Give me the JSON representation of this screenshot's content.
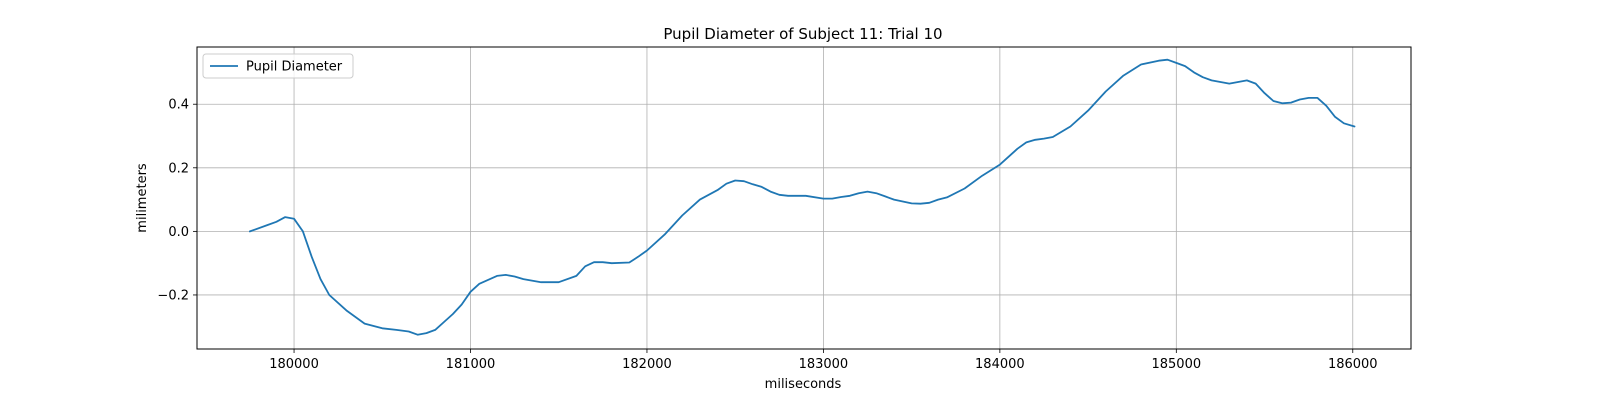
{
  "chart_data": {
    "type": "line",
    "title": "Pupil Diameter of Subject 11: Trial 10",
    "xlabel": "miliseconds",
    "ylabel": "milimeters",
    "xlim": [
      179450,
      186330
    ],
    "ylim": [
      -0.37,
      0.58
    ],
    "xticks": [
      180000,
      181000,
      182000,
      183000,
      184000,
      185000,
      186000
    ],
    "xtick_labels": [
      "180000",
      "181000",
      "182000",
      "183000",
      "184000",
      "185000",
      "186000"
    ],
    "yticks": [
      -0.2,
      0.0,
      0.2,
      0.4
    ],
    "ytick_labels": [
      "−0.2",
      "0.0",
      "0.2",
      "0.4"
    ],
    "grid": true,
    "legend_position": "top-left",
    "series": [
      {
        "name": "Pupil Diameter",
        "color": "#1f77b4",
        "x": [
          179750,
          179850,
          179900,
          179950,
          180000,
          180050,
          180100,
          180150,
          180200,
          180300,
          180400,
          180500,
          180580,
          180650,
          180700,
          180750,
          180800,
          180850,
          180900,
          180950,
          181000,
          181050,
          181150,
          181200,
          181250,
          181300,
          181400,
          181500,
          181600,
          181650,
          181700,
          181750,
          181800,
          181900,
          181950,
          182000,
          182100,
          182200,
          182300,
          182350,
          182400,
          182450,
          182500,
          182550,
          182600,
          182650,
          182700,
          182750,
          182800,
          182900,
          183000,
          183050,
          183100,
          183150,
          183200,
          183250,
          183300,
          183350,
          183400,
          183500,
          183550,
          183600,
          183650,
          183700,
          183800,
          183900,
          184000,
          184100,
          184150,
          184200,
          184250,
          184300,
          184400,
          184500,
          184600,
          184700,
          184800,
          184900,
          184950,
          185000,
          185050,
          185100,
          185150,
          185200,
          185300,
          185350,
          185400,
          185450,
          185500,
          185550,
          185600,
          185650,
          185700,
          185750,
          185800,
          185850,
          185900,
          185950,
          186010
        ],
        "y": [
          0.0,
          0.02,
          0.03,
          0.045,
          0.04,
          0.0,
          -0.08,
          -0.15,
          -0.2,
          -0.25,
          -0.29,
          -0.305,
          -0.31,
          -0.315,
          -0.325,
          -0.32,
          -0.31,
          -0.285,
          -0.26,
          -0.23,
          -0.19,
          -0.165,
          -0.14,
          -0.137,
          -0.142,
          -0.15,
          -0.16,
          -0.16,
          -0.14,
          -0.11,
          -0.097,
          -0.097,
          -0.1,
          -0.098,
          -0.08,
          -0.06,
          -0.01,
          0.05,
          0.1,
          0.115,
          0.13,
          0.15,
          0.16,
          0.158,
          0.148,
          0.14,
          0.125,
          0.115,
          0.112,
          0.112,
          0.103,
          0.103,
          0.108,
          0.112,
          0.12,
          0.125,
          0.12,
          0.11,
          0.1,
          0.088,
          0.087,
          0.09,
          0.1,
          0.107,
          0.135,
          0.175,
          0.21,
          0.26,
          0.28,
          0.288,
          0.292,
          0.297,
          0.33,
          0.38,
          0.44,
          0.49,
          0.525,
          0.537,
          0.54,
          0.53,
          0.52,
          0.5,
          0.485,
          0.475,
          0.465,
          0.47,
          0.475,
          0.465,
          0.435,
          0.41,
          0.403,
          0.405,
          0.415,
          0.42,
          0.42,
          0.395,
          0.36,
          0.34,
          0.33
        ]
      }
    ]
  }
}
